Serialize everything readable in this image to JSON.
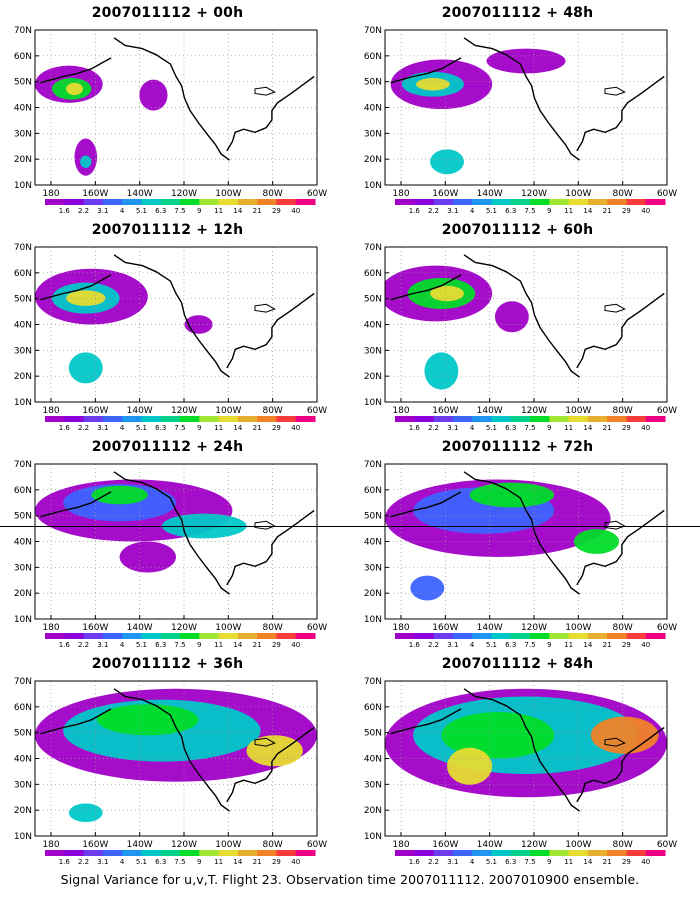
{
  "caption": "Signal Variance for u,v,T. Flight 23. Observation time 2007011112. 2007010900 ensemble.",
  "panels": [
    {
      "title": "2007011112 + 00h",
      "level": 0
    },
    {
      "title": "2007011112 + 48h",
      "level": 4
    },
    {
      "title": "2007011112 + 12h",
      "level": 1
    },
    {
      "title": "2007011112 + 60h",
      "level": 5
    },
    {
      "title": "2007011112 + 24h",
      "level": 2
    },
    {
      "title": "2007011112 + 72h",
      "level": 6
    },
    {
      "title": "2007011112 + 36h",
      "level": 3
    },
    {
      "title": "2007011112 + 84h",
      "level": 7
    }
  ],
  "axes": {
    "lat_labels": [
      "70N",
      "60N",
      "50N",
      "40N",
      "30N",
      "20N",
      "10N"
    ],
    "lon_labels": [
      "180",
      "160W",
      "140W",
      "120W",
      "100W",
      "80W",
      "60W"
    ]
  },
  "colorbar": {
    "labels": [
      "1.6",
      "2.2",
      "3.1",
      "4",
      "5.1",
      "6.3",
      "7.5",
      "9",
      "11",
      "14",
      "21",
      "29",
      "40"
    ],
    "colors": [
      "#a000c8",
      "#8c00dc",
      "#6e3cf0",
      "#3c64ff",
      "#1e96f0",
      "#00c8c8",
      "#00d28c",
      "#00dc28",
      "#a0e632",
      "#e6dc32",
      "#e6af2d",
      "#f08228",
      "#fa3c3c",
      "#f00082"
    ]
  },
  "contour_colors": {
    "low": "#a000c8",
    "mid_low": "#3c64ff",
    "mid": "#00c8c8",
    "mid_high": "#00dc28",
    "high": "#e6dc32",
    "max": "#f08228"
  }
}
